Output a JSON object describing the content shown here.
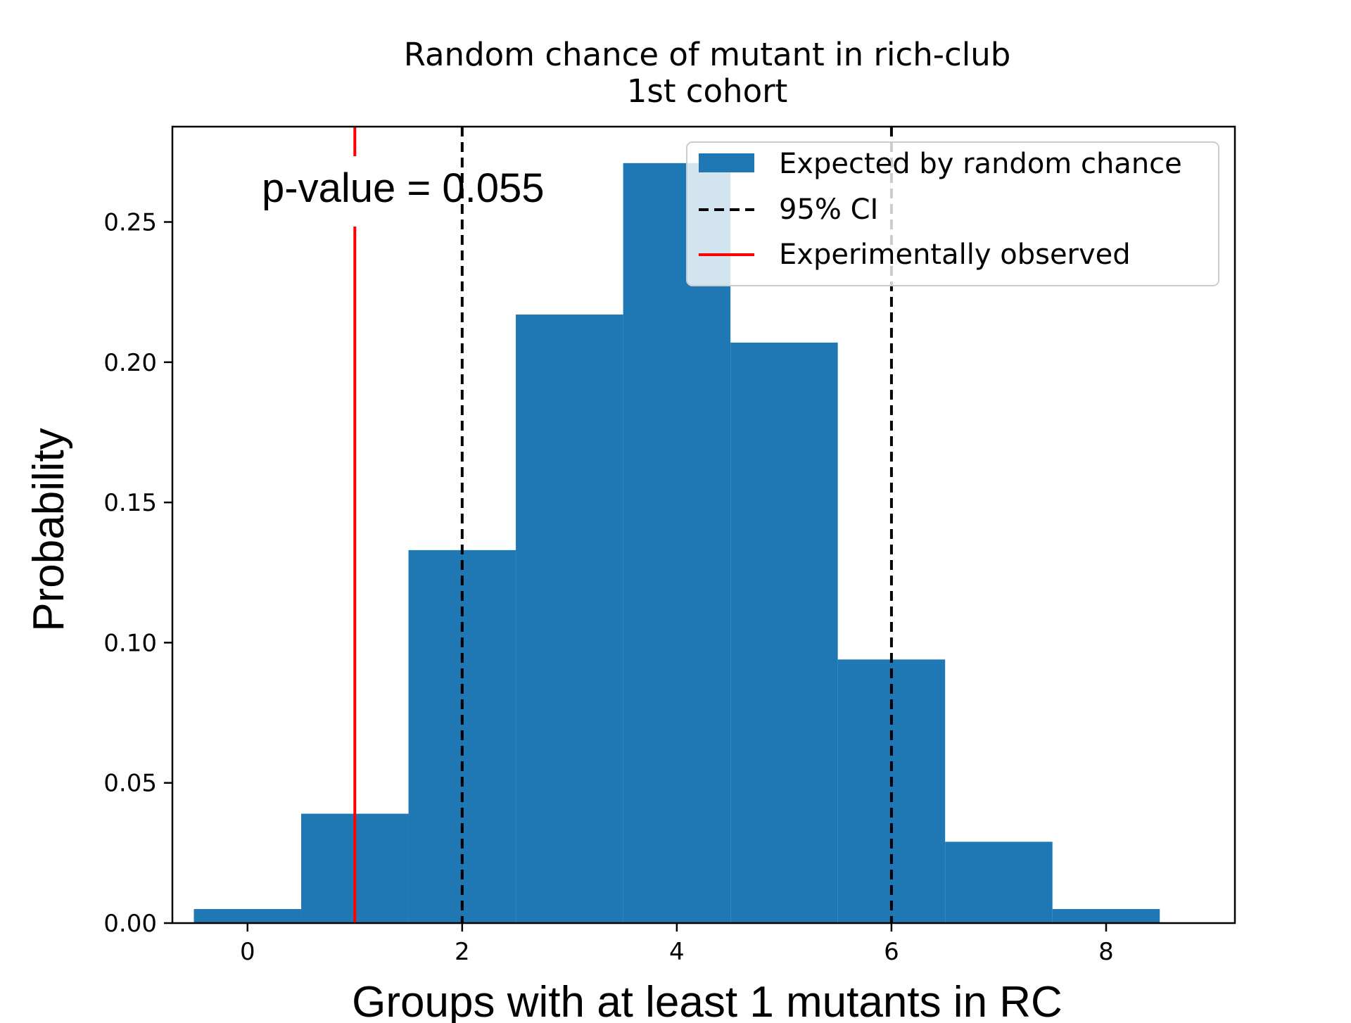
{
  "chart_data": {
    "type": "bar",
    "title_line1": "Random chance of mutant in rich-club",
    "title_line2": "1st cohort",
    "xlabel": "Groups with at least 1 mutants in RC",
    "ylabel": "Probability",
    "xlim": [
      -0.7,
      9.2
    ],
    "ylim": [
      0,
      0.284
    ],
    "xticks": [
      0,
      2,
      4,
      6,
      8
    ],
    "xtick_labels": [
      "0",
      "2",
      "4",
      "6",
      "8"
    ],
    "yticks": [
      0,
      0.05,
      0.1,
      0.15,
      0.2,
      0.25
    ],
    "ytick_labels": [
      "0.00",
      "0.05",
      "0.10",
      "0.15",
      "0.20",
      "0.25"
    ],
    "bins": [
      {
        "x0": -0.5,
        "x1": 0.5,
        "value": 0.005
      },
      {
        "x0": 0.5,
        "x1": 1.5,
        "value": 0.039
      },
      {
        "x0": 1.5,
        "x1": 2.5,
        "value": 0.133
      },
      {
        "x0": 2.5,
        "x1": 3.5,
        "value": 0.217
      },
      {
        "x0": 3.5,
        "x1": 4.5,
        "value": 0.271
      },
      {
        "x0": 4.5,
        "x1": 5.5,
        "value": 0.207
      },
      {
        "x0": 5.5,
        "x1": 6.5,
        "value": 0.094
      },
      {
        "x0": 6.5,
        "x1": 7.5,
        "value": 0.029
      },
      {
        "x0": 7.5,
        "x1": 8.5,
        "value": 0.005
      }
    ],
    "ci_lines": [
      2,
      6
    ],
    "observed_line": 1,
    "annotation": "p-value = 0.055",
    "grid": false,
    "legend_placement": "top-right",
    "legend": [
      {
        "label": "Expected by random chance",
        "style": "patch"
      },
      {
        "label": "95% CI",
        "style": "dashed"
      },
      {
        "label": "Experimentally observed",
        "style": "solid-red"
      }
    ],
    "colors": {
      "bar": "#1f77b4",
      "ci": "#000000",
      "observed": "#ff0000"
    }
  }
}
